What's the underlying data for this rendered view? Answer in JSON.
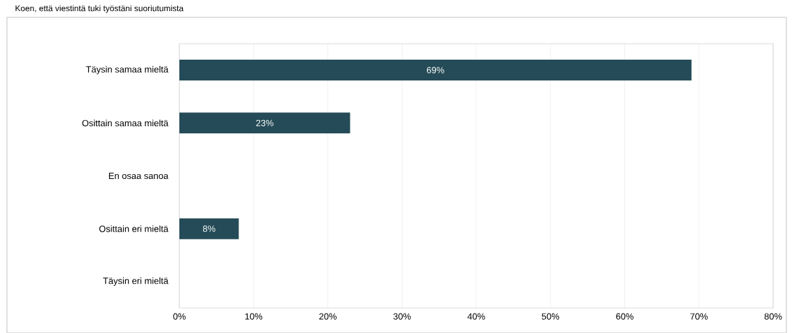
{
  "chart_data": {
    "type": "bar",
    "orientation": "horizontal",
    "title": "Koen, että viestintä tuki työstäni suoriutumista",
    "categories": [
      "Täysin samaa mieltä",
      "Osittain samaa mieltä",
      "En osaa sanoa",
      "Osittain eri mieltä",
      "Täysin eri mieltä"
    ],
    "values": [
      69,
      23,
      0,
      8,
      0
    ],
    "value_labels": [
      "69%",
      "23%",
      null,
      "8%",
      null
    ],
    "color": "#244b57",
    "xlim": [
      0,
      80
    ],
    "xticks": [
      {
        "value": 0,
        "label": "0%"
      },
      {
        "value": 10,
        "label": "10%"
      },
      {
        "value": 20,
        "label": "20%"
      },
      {
        "value": 30,
        "label": "30%"
      },
      {
        "value": 40,
        "label": "40%"
      },
      {
        "value": 50,
        "label": "50%"
      },
      {
        "value": 60,
        "label": "60%"
      },
      {
        "value": 70,
        "label": "70%"
      },
      {
        "value": 80,
        "label": "80%"
      }
    ],
    "grid": "x"
  }
}
